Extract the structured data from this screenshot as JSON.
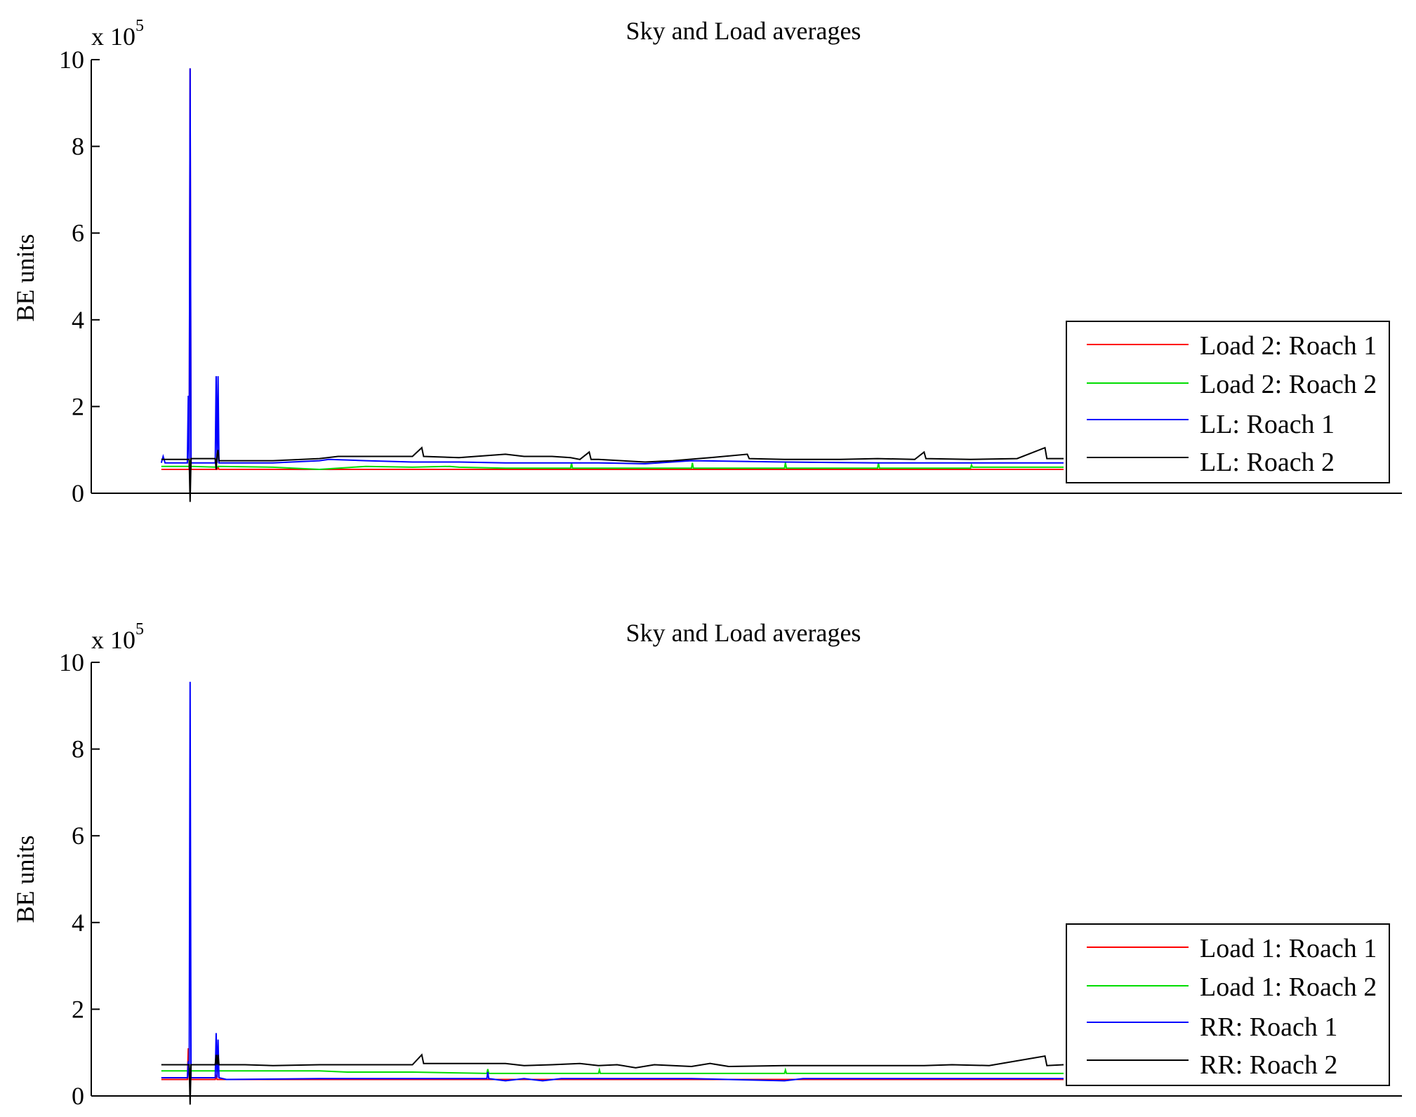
{
  "chart_data": [
    {
      "type": "line",
      "title": "Sky and Load averages",
      "ylabel": "BE units",
      "xlabel": "",
      "y_multiplier": "x 10",
      "y_multiplier_exponent": "5",
      "ylim": [
        0,
        10
      ],
      "xlim": [
        0,
        1000
      ],
      "yticks": [
        0,
        2,
        4,
        6,
        8,
        10
      ],
      "x_ticks_shown": false,
      "grid": false,
      "legend_position": "lower-right",
      "legend": [
        "Load 2: Roach 1",
        "Load 2: Roach 2",
        "LL: Roach 1",
        "LL: Roach 2"
      ],
      "series": [
        {
          "name": "Load 2: Roach 1",
          "color": "#ff0000",
          "points": [
            [
              30,
              0.55
            ],
            [
              60,
              0.55
            ],
            [
              61,
              9.8
            ],
            [
              62,
              0.55
            ],
            [
              63,
              0.55
            ],
            [
              90,
              0.55
            ],
            [
              91,
              0.6
            ],
            [
              92,
              0.55
            ],
            [
              200,
              0.55
            ],
            [
              500,
              0.55
            ],
            [
              1000,
              0.55
            ]
          ]
        },
        {
          "name": "Load 2: Roach 2",
          "color": "#00dd00",
          "points": [
            [
              30,
              0.62
            ],
            [
              60,
              0.62
            ],
            [
              61,
              0.7
            ],
            [
              62,
              0.62
            ],
            [
              90,
              0.6
            ],
            [
              91,
              0.62
            ],
            [
              150,
              0.6
            ],
            [
              200,
              0.55
            ],
            [
              250,
              0.62
            ],
            [
              300,
              0.6
            ],
            [
              340,
              0.62
            ],
            [
              350,
              0.6
            ],
            [
              400,
              0.58
            ],
            [
              470,
              0.58
            ],
            [
              471,
              0.7
            ],
            [
              472,
              0.58
            ],
            [
              600,
              0.58
            ],
            [
              601,
              0.7
            ],
            [
              602,
              0.58
            ],
            [
              700,
              0.58
            ],
            [
              701,
              0.7
            ],
            [
              702,
              0.58
            ],
            [
              800,
              0.58
            ],
            [
              801,
              0.7
            ],
            [
              802,
              0.58
            ],
            [
              900,
              0.58
            ],
            [
              901,
              0.65
            ],
            [
              902,
              0.6
            ],
            [
              1000,
              0.6
            ]
          ]
        },
        {
          "name": "LL: Roach 1",
          "color": "#0000ff",
          "points": [
            [
              30,
              0.7
            ],
            [
              32,
              0.85
            ],
            [
              34,
              0.7
            ],
            [
              58,
              0.7
            ],
            [
              59,
              2.25
            ],
            [
              60,
              0.7
            ],
            [
              61,
              9.8
            ],
            [
              62,
              0.7
            ],
            [
              63,
              0.7
            ],
            [
              88,
              0.7
            ],
            [
              89,
              2.7
            ],
            [
              90,
              0.7
            ],
            [
              91,
              2.7
            ],
            [
              92,
              0.7
            ],
            [
              150,
              0.7
            ],
            [
              200,
              0.75
            ],
            [
              210,
              0.78
            ],
            [
              250,
              0.75
            ],
            [
              300,
              0.72
            ],
            [
              350,
              0.72
            ],
            [
              400,
              0.7
            ],
            [
              500,
              0.7
            ],
            [
              550,
              0.68
            ],
            [
              600,
              0.75
            ],
            [
              700,
              0.72
            ],
            [
              800,
              0.7
            ],
            [
              900,
              0.7
            ],
            [
              1000,
              0.7
            ]
          ]
        },
        {
          "name": "LL: Roach 2",
          "color": "#000000",
          "points": [
            [
              30,
              0.78
            ],
            [
              60,
              0.78
            ],
            [
              61,
              -0.2
            ],
            [
              62,
              0.8
            ],
            [
              88,
              0.8
            ],
            [
              89,
              0.55
            ],
            [
              90,
              0.9
            ],
            [
              91,
              1.0
            ],
            [
              92,
              0.75
            ],
            [
              150,
              0.75
            ],
            [
              200,
              0.8
            ],
            [
              220,
              0.85
            ],
            [
              250,
              0.85
            ],
            [
              300,
              0.85
            ],
            [
              310,
              1.05
            ],
            [
              312,
              0.85
            ],
            [
              350,
              0.82
            ],
            [
              400,
              0.9
            ],
            [
              420,
              0.85
            ],
            [
              450,
              0.85
            ],
            [
              470,
              0.82
            ],
            [
              480,
              0.78
            ],
            [
              490,
              0.95
            ],
            [
              492,
              0.78
            ],
            [
              500,
              0.78
            ],
            [
              550,
              0.72
            ],
            [
              580,
              0.75
            ],
            [
              620,
              0.82
            ],
            [
              660,
              0.9
            ],
            [
              662,
              0.8
            ],
            [
              700,
              0.78
            ],
            [
              760,
              0.78
            ],
            [
              800,
              0.8
            ],
            [
              840,
              0.78
            ],
            [
              850,
              0.95
            ],
            [
              852,
              0.8
            ],
            [
              900,
              0.78
            ],
            [
              950,
              0.8
            ],
            [
              980,
              1.05
            ],
            [
              982,
              0.8
            ],
            [
              1000,
              0.8
            ]
          ]
        }
      ]
    },
    {
      "type": "line",
      "title": "Sky and Load averages",
      "ylabel": "BE units",
      "xlabel": "",
      "y_multiplier": "x 10",
      "y_multiplier_exponent": "5",
      "ylim": [
        0,
        10
      ],
      "xlim": [
        0,
        1000
      ],
      "yticks": [
        0,
        2,
        4,
        6,
        8,
        10
      ],
      "x_ticks_shown": false,
      "grid": false,
      "legend_position": "lower-right",
      "legend": [
        "Load 1: Roach 1",
        "Load 1: Roach 2",
        "RR: Roach 1",
        "RR: Roach 2"
      ],
      "series": [
        {
          "name": "Load 1: Roach 1",
          "color": "#ff0000",
          "points": [
            [
              30,
              0.38
            ],
            [
              58,
              0.38
            ],
            [
              59,
              1.1
            ],
            [
              60,
              0.38
            ],
            [
              88,
              0.38
            ],
            [
              89,
              0.45
            ],
            [
              90,
              0.38
            ],
            [
              200,
              0.38
            ],
            [
              500,
              0.38
            ],
            [
              1000,
              0.38
            ]
          ]
        },
        {
          "name": "Load 1: Roach 2",
          "color": "#00dd00",
          "points": [
            [
              30,
              0.58
            ],
            [
              60,
              0.58
            ],
            [
              61,
              0.62
            ],
            [
              62,
              0.58
            ],
            [
              200,
              0.58
            ],
            [
              230,
              0.55
            ],
            [
              270,
              0.55
            ],
            [
              300,
              0.55
            ],
            [
              380,
              0.52
            ],
            [
              381,
              0.62
            ],
            [
              382,
              0.52
            ],
            [
              500,
              0.52
            ],
            [
              501,
              0.6
            ],
            [
              502,
              0.52
            ],
            [
              600,
              0.52
            ],
            [
              700,
              0.52
            ],
            [
              701,
              0.6
            ],
            [
              702,
              0.52
            ],
            [
              800,
              0.52
            ],
            [
              1000,
              0.52
            ]
          ]
        },
        {
          "name": "RR: Roach 1",
          "color": "#0000ff",
          "points": [
            [
              30,
              0.42
            ],
            [
              58,
              0.42
            ],
            [
              59,
              0.8
            ],
            [
              60,
              0.42
            ],
            [
              61,
              9.55
            ],
            [
              62,
              0.42
            ],
            [
              88,
              0.42
            ],
            [
              89,
              1.45
            ],
            [
              90,
              0.42
            ],
            [
              91,
              1.3
            ],
            [
              92,
              0.42
            ],
            [
              100,
              0.38
            ],
            [
              200,
              0.4
            ],
            [
              300,
              0.4
            ],
            [
              380,
              0.4
            ],
            [
              381,
              0.55
            ],
            [
              382,
              0.4
            ],
            [
              400,
              0.35
            ],
            [
              420,
              0.4
            ],
            [
              440,
              0.35
            ],
            [
              460,
              0.4
            ],
            [
              600,
              0.4
            ],
            [
              700,
              0.35
            ],
            [
              720,
              0.4
            ],
            [
              800,
              0.4
            ],
            [
              900,
              0.4
            ],
            [
              1000,
              0.4
            ]
          ]
        },
        {
          "name": "RR: Roach 2",
          "color": "#000000",
          "points": [
            [
              30,
              0.72
            ],
            [
              60,
              0.72
            ],
            [
              61,
              -0.2
            ],
            [
              62,
              0.72
            ],
            [
              88,
              0.72
            ],
            [
              89,
              0.95
            ],
            [
              90,
              0.72
            ],
            [
              91,
              0.95
            ],
            [
              92,
              0.72
            ],
            [
              120,
              0.72
            ],
            [
              150,
              0.7
            ],
            [
              200,
              0.72
            ],
            [
              250,
              0.72
            ],
            [
              300,
              0.72
            ],
            [
              310,
              0.95
            ],
            [
              312,
              0.75
            ],
            [
              350,
              0.75
            ],
            [
              400,
              0.75
            ],
            [
              420,
              0.7
            ],
            [
              450,
              0.72
            ],
            [
              480,
              0.75
            ],
            [
              500,
              0.7
            ],
            [
              520,
              0.72
            ],
            [
              540,
              0.65
            ],
            [
              560,
              0.72
            ],
            [
              600,
              0.68
            ],
            [
              620,
              0.75
            ],
            [
              640,
              0.68
            ],
            [
              700,
              0.7
            ],
            [
              760,
              0.7
            ],
            [
              800,
              0.7
            ],
            [
              850,
              0.7
            ],
            [
              880,
              0.72
            ],
            [
              920,
              0.7
            ],
            [
              980,
              0.92
            ],
            [
              982,
              0.7
            ],
            [
              1000,
              0.72
            ]
          ]
        }
      ]
    }
  ]
}
